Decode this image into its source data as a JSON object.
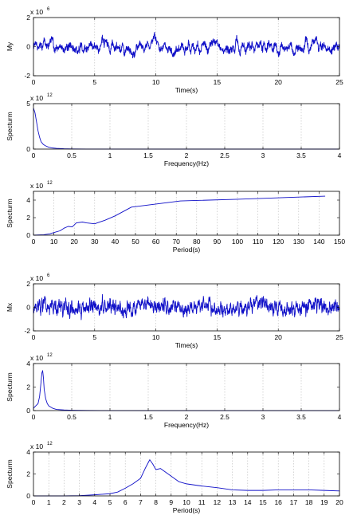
{
  "chart_data": [
    {
      "type": "line",
      "xlabel": "Time(s)",
      "ylabel": "My",
      "exponent": {
        "base": "x 10",
        "power": "6"
      },
      "xlim": [
        0,
        25
      ],
      "ylim": [
        -2,
        2
      ],
      "xticks": [
        0,
        5,
        10,
        15,
        20,
        25
      ],
      "xtick_labels": [
        "0",
        "5",
        "10",
        "15",
        "20",
        "25"
      ],
      "yticks": [
        -2,
        0,
        2
      ],
      "ytick_labels": [
        "-2",
        "0",
        "2"
      ],
      "grid": "x",
      "color": "#1010c8",
      "signal": {
        "kind": "noise",
        "n": 2000,
        "amplitude": 0.5,
        "smooth": 6,
        "seed": 7
      },
      "series": [
        {
          "x": [
            0,
            2.5,
            5,
            7.5,
            10,
            12.5,
            15,
            17.5,
            20,
            22.5,
            25
          ],
          "y": [
            0.2,
            0.3,
            -0.2,
            -0.5,
            0.1,
            0.4,
            0.3,
            -0.1,
            0.5,
            -0.2,
            0.2
          ]
        }
      ]
    },
    {
      "type": "line",
      "xlabel": "Frequency(Hz)",
      "ylabel": "Specturm",
      "exponent": {
        "base": "x 10",
        "power": "12"
      },
      "xlim": [
        0,
        4
      ],
      "ylim": [
        0,
        5
      ],
      "xticks": [
        0,
        0.5,
        1,
        1.5,
        2,
        2.5,
        3,
        3.5,
        4
      ],
      "xtick_labels": [
        "0",
        "0.5",
        "1",
        "1.5",
        "2",
        "2.5",
        "3",
        "3.5",
        "4"
      ],
      "yticks": [
        0,
        5
      ],
      "ytick_labels": [
        "0",
        "5"
      ],
      "grid": "x",
      "color": "#1010c8",
      "series": [
        {
          "x": [
            0,
            0.02,
            0.04,
            0.06,
            0.08,
            0.1,
            0.13,
            0.16,
            0.2,
            0.25,
            0.3,
            0.4,
            0.5,
            0.7,
            1,
            2,
            3,
            4
          ],
          "y": [
            4.5,
            4.0,
            3.0,
            2.0,
            1.3,
            0.8,
            0.5,
            0.35,
            0.2,
            0.12,
            0.08,
            0.04,
            0.02,
            0.01,
            0.005,
            0.001,
            0,
            0
          ]
        }
      ]
    },
    {
      "type": "line",
      "xlabel": "Period(s)",
      "ylabel": "Specturm",
      "exponent": {
        "base": "x 10",
        "power": "12"
      },
      "xlim": [
        0,
        150
      ],
      "ylim": [
        0,
        5
      ],
      "xticks": [
        0,
        10,
        20,
        30,
        40,
        50,
        60,
        70,
        80,
        90,
        100,
        110,
        120,
        130,
        140,
        150
      ],
      "xtick_labels": [
        "0",
        "10",
        "20",
        "30",
        "40",
        "50",
        "60",
        "70",
        "80",
        "90",
        "100",
        "110",
        "120",
        "130",
        "140",
        "150"
      ],
      "yticks": [
        0,
        2,
        4
      ],
      "ytick_labels": [
        "0",
        "2",
        "4"
      ],
      "grid": "x",
      "color": "#1010c8",
      "series": [
        {
          "x": [
            0,
            5,
            8,
            10,
            13,
            15,
            17,
            19,
            21,
            24,
            26,
            30,
            35,
            40,
            48,
            72,
            100,
            143
          ],
          "y": [
            0,
            0.05,
            0.15,
            0.3,
            0.5,
            0.8,
            1.0,
            0.95,
            1.4,
            1.5,
            1.4,
            1.3,
            1.7,
            2.2,
            3.2,
            3.9,
            4.1,
            4.45
          ]
        }
      ]
    },
    {
      "type": "line",
      "xlabel": "Time(s)",
      "ylabel": "Mx",
      "exponent": {
        "base": "x 10",
        "power": "6"
      },
      "xlim": [
        0,
        25
      ],
      "ylim": [
        -2,
        2
      ],
      "xticks": [
        0,
        5,
        10,
        15,
        20,
        25
      ],
      "xtick_labels": [
        "0",
        "5",
        "10",
        "15",
        "20",
        "25"
      ],
      "yticks": [
        -2,
        0,
        2
      ],
      "ytick_labels": [
        "-2",
        "0",
        "2"
      ],
      "grid": "x",
      "color": "#1010c8",
      "signal": {
        "kind": "noise",
        "n": 2000,
        "amplitude": 0.55,
        "smooth": 2,
        "seed": 13
      },
      "series": [
        {
          "x": [
            0,
            2.5,
            5,
            7.5,
            10,
            12.5,
            15,
            17.5,
            20,
            22.5,
            25
          ],
          "y": [
            0,
            0.3,
            -0.3,
            0.4,
            -0.2,
            0.3,
            -0.4,
            0.2,
            -0.3,
            0.4,
            0
          ]
        }
      ]
    },
    {
      "type": "line",
      "xlabel": "Frequency(Hz)",
      "ylabel": "Specturm",
      "exponent": {
        "base": "x 10",
        "power": "12"
      },
      "xlim": [
        0,
        4
      ],
      "ylim": [
        0,
        4
      ],
      "xticks": [
        0,
        0.5,
        1,
        1.5,
        2,
        2.5,
        3,
        3.5,
        4
      ],
      "xtick_labels": [
        "0",
        "0.5",
        "1",
        "1.5",
        "2",
        "2.5",
        "3",
        "3.5",
        "4"
      ],
      "yticks": [
        0,
        2,
        4
      ],
      "ytick_labels": [
        "0",
        "2",
        "4"
      ],
      "grid": "x",
      "color": "#1010c8",
      "series": [
        {
          "x": [
            0,
            0.03,
            0.06,
            0.08,
            0.1,
            0.11,
            0.12,
            0.13,
            0.14,
            0.16,
            0.18,
            0.2,
            0.25,
            0.3,
            0.4,
            0.5,
            0.7,
            1,
            2,
            3,
            4
          ],
          "y": [
            0.2,
            0.4,
            0.6,
            1.2,
            2.5,
            3.2,
            3.4,
            2.8,
            1.8,
            1.0,
            0.6,
            0.4,
            0.2,
            0.1,
            0.05,
            0.03,
            0.01,
            0.005,
            0,
            0,
            0
          ]
        }
      ]
    },
    {
      "type": "line",
      "xlabel": "Period(s)",
      "ylabel": "Specturm",
      "exponent": {
        "base": "x 10",
        "power": "12"
      },
      "xlim": [
        0,
        20
      ],
      "ylim": [
        0,
        4
      ],
      "xticks": [
        0,
        1,
        2,
        3,
        4,
        5,
        6,
        7,
        8,
        9,
        10,
        11,
        12,
        13,
        14,
        15,
        16,
        17,
        18,
        19,
        20
      ],
      "xtick_labels": [
        "0",
        "1",
        "2",
        "3",
        "4",
        "5",
        "6",
        "7",
        "8",
        "9",
        "10",
        "11",
        "12",
        "13",
        "14",
        "15",
        "16",
        "17",
        "18",
        "19",
        "20"
      ],
      "yticks": [
        0,
        2,
        4
      ],
      "ytick_labels": [
        "0",
        "2",
        "4"
      ],
      "grid": "x",
      "color": "#1010c8",
      "series": [
        {
          "x": [
            0,
            2,
            3,
            4,
            5,
            5.5,
            6,
            6.5,
            7,
            7.3,
            7.6,
            7.8,
            8,
            8.3,
            8.6,
            9,
            9.5,
            10,
            11,
            12,
            13,
            14,
            15,
            16,
            17,
            18,
            19,
            20
          ],
          "y": [
            0,
            0,
            0.02,
            0.1,
            0.2,
            0.35,
            0.7,
            1.1,
            1.6,
            2.5,
            3.3,
            2.9,
            2.4,
            2.5,
            2.2,
            1.8,
            1.3,
            1.1,
            0.9,
            0.75,
            0.55,
            0.5,
            0.5,
            0.55,
            0.55,
            0.55,
            0.5,
            0.45
          ]
        }
      ]
    }
  ]
}
